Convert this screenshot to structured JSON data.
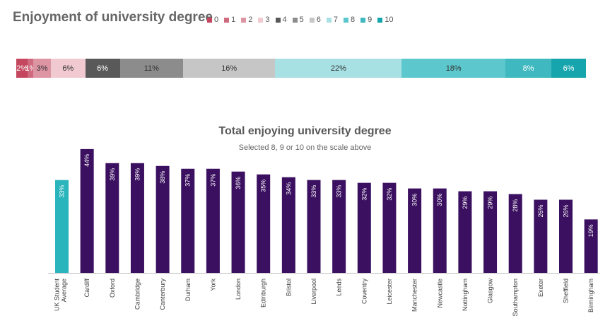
{
  "top_chart": {
    "title": "Enjoyment of university degree",
    "legend": [
      {
        "label": "0",
        "color": "#c5475f"
      },
      {
        "label": "1",
        "color": "#d06a7f"
      },
      {
        "label": "2",
        "color": "#dd95a4"
      },
      {
        "label": "3",
        "color": "#f0c9d1"
      },
      {
        "label": "4",
        "color": "#595959"
      },
      {
        "label": "5",
        "color": "#8c8c8c"
      },
      {
        "label": "6",
        "color": "#c6c6c6"
      },
      {
        "label": "7",
        "color": "#a8e1e4"
      },
      {
        "label": "8",
        "color": "#5cc8cd"
      },
      {
        "label": "9",
        "color": "#3fb8bf"
      },
      {
        "label": "10",
        "color": "#16a5ad"
      }
    ],
    "segments": [
      {
        "scale": "0",
        "value": 2,
        "label": "2%",
        "color": "#c5475f",
        "text_color": "#ffffff"
      },
      {
        "scale": "1",
        "value": 1,
        "label": "1%",
        "color": "#d06a7f",
        "text_color": "#ffffff"
      },
      {
        "scale": "2",
        "value": 3,
        "label": "3%",
        "color": "#dd95a4",
        "text_color": "#333333"
      },
      {
        "scale": "3",
        "value": 6,
        "label": "6%",
        "color": "#f0c9d1",
        "text_color": "#333333"
      },
      {
        "scale": "4",
        "value": 6,
        "label": "6%",
        "color": "#595959",
        "text_color": "#ffffff"
      },
      {
        "scale": "5",
        "value": 11,
        "label": "11%",
        "color": "#8c8c8c",
        "text_color": "#333333"
      },
      {
        "scale": "6",
        "value": 16,
        "label": "16%",
        "color": "#c6c6c6",
        "text_color": "#333333"
      },
      {
        "scale": "7",
        "value": 22,
        "label": "22%",
        "color": "#a8e1e4",
        "text_color": "#333333"
      },
      {
        "scale": "8",
        "value": 18,
        "label": "18%",
        "color": "#5cc8cd",
        "text_color": "#333333"
      },
      {
        "scale": "9",
        "value": 8,
        "label": "8%",
        "color": "#3fb8bf",
        "text_color": "#ffffff"
      },
      {
        "scale": "10",
        "value": 6,
        "label": "6%",
        "color": "#16a5ad",
        "text_color": "#ffffff"
      }
    ]
  },
  "chart_data": {
    "type": "bar",
    "title": "Total enjoying university degree",
    "subtitle": "Selected 8, 9 or 10 on the scale above",
    "categories": [
      "UK Student Average",
      "Cardiff",
      "Oxford",
      "Cambridge",
      "Canterbury",
      "Durham",
      "York",
      "London",
      "Edinburgh",
      "Bristol",
      "Liverpool",
      "Leeds",
      "Coventry",
      "Leicester",
      "Manchester",
      "Newcastle",
      "Nottingham",
      "Glasgow",
      "Southampton",
      "Exeter",
      "Sheffield",
      "Birmingham"
    ],
    "values": [
      33,
      44,
      39,
      39,
      38,
      37,
      37,
      36,
      35,
      34,
      33,
      33,
      32,
      32,
      30,
      30,
      29,
      29,
      28,
      26,
      26,
      19
    ],
    "value_labels": [
      "33%",
      "44%",
      "39%",
      "39%",
      "38%",
      "37%",
      "37%",
      "36%",
      "35%",
      "34%",
      "33%",
      "33%",
      "32%",
      "32%",
      "30%",
      "30%",
      "29%",
      "29%",
      "28%",
      "26%",
      "26%",
      "19%"
    ],
    "highlight_color": "#2ab4bb",
    "bar_color": "#3b1060",
    "ylim": [
      0,
      45
    ],
    "xlabel": "",
    "ylabel": "",
    "grid": false
  }
}
